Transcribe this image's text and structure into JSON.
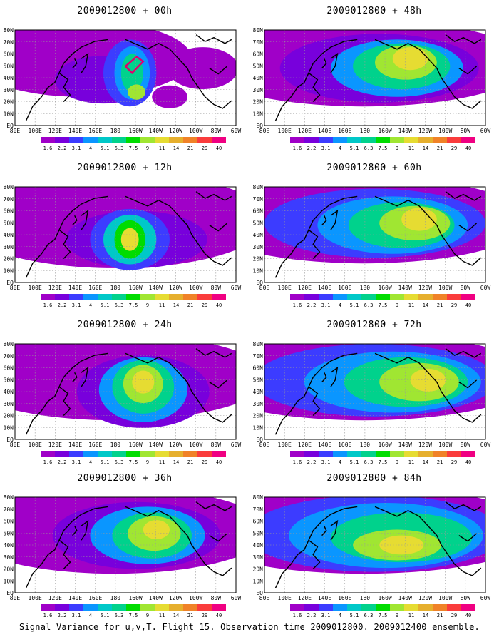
{
  "colors": {
    "scale": [
      "#a000c8",
      "#7800dc",
      "#3c3cff",
      "#0a96ff",
      "#00c8c8",
      "#00d28c",
      "#00dc00",
      "#a0e632",
      "#e6dc32",
      "#e6af2d",
      "#f08228",
      "#fa3c3c",
      "#f00082"
    ],
    "coast": "#000000",
    "grid": "#999999",
    "flight_track": "#e0006e"
  },
  "legend_ticks": [
    "1.6",
    "2.2",
    "3.1",
    "4",
    "5.1",
    "6.3",
    "7.5",
    "9",
    "11",
    "14",
    "21",
    "29",
    "40"
  ],
  "lat_labels": [
    "EQ",
    "10N",
    "20N",
    "30N",
    "40N",
    "50N",
    "60N",
    "70N",
    "80N"
  ],
  "lon_labels": [
    "80E",
    "100E",
    "120E",
    "140E",
    "160E",
    "180",
    "160W",
    "140W",
    "120W",
    "100W",
    "80W",
    "60W"
  ],
  "panels": [
    {
      "title": "2009012800 + 00h",
      "id": "p00"
    },
    {
      "title": "2009012800 + 12h",
      "id": "p12"
    },
    {
      "title": "2009012800 + 24h",
      "id": "p24"
    },
    {
      "title": "2009012800 + 36h",
      "id": "p36"
    },
    {
      "title": "2009012800 + 48h",
      "id": "p48"
    },
    {
      "title": "2009012800 + 60h",
      "id": "p60"
    },
    {
      "title": "2009012800 + 72h",
      "id": "p72"
    },
    {
      "title": "2009012800 + 84h",
      "id": "p84"
    }
  ],
  "caption": "Signal Variance for u,v,T. Flight 15. Observation time 2009012800. 2009012400 ensemble."
}
